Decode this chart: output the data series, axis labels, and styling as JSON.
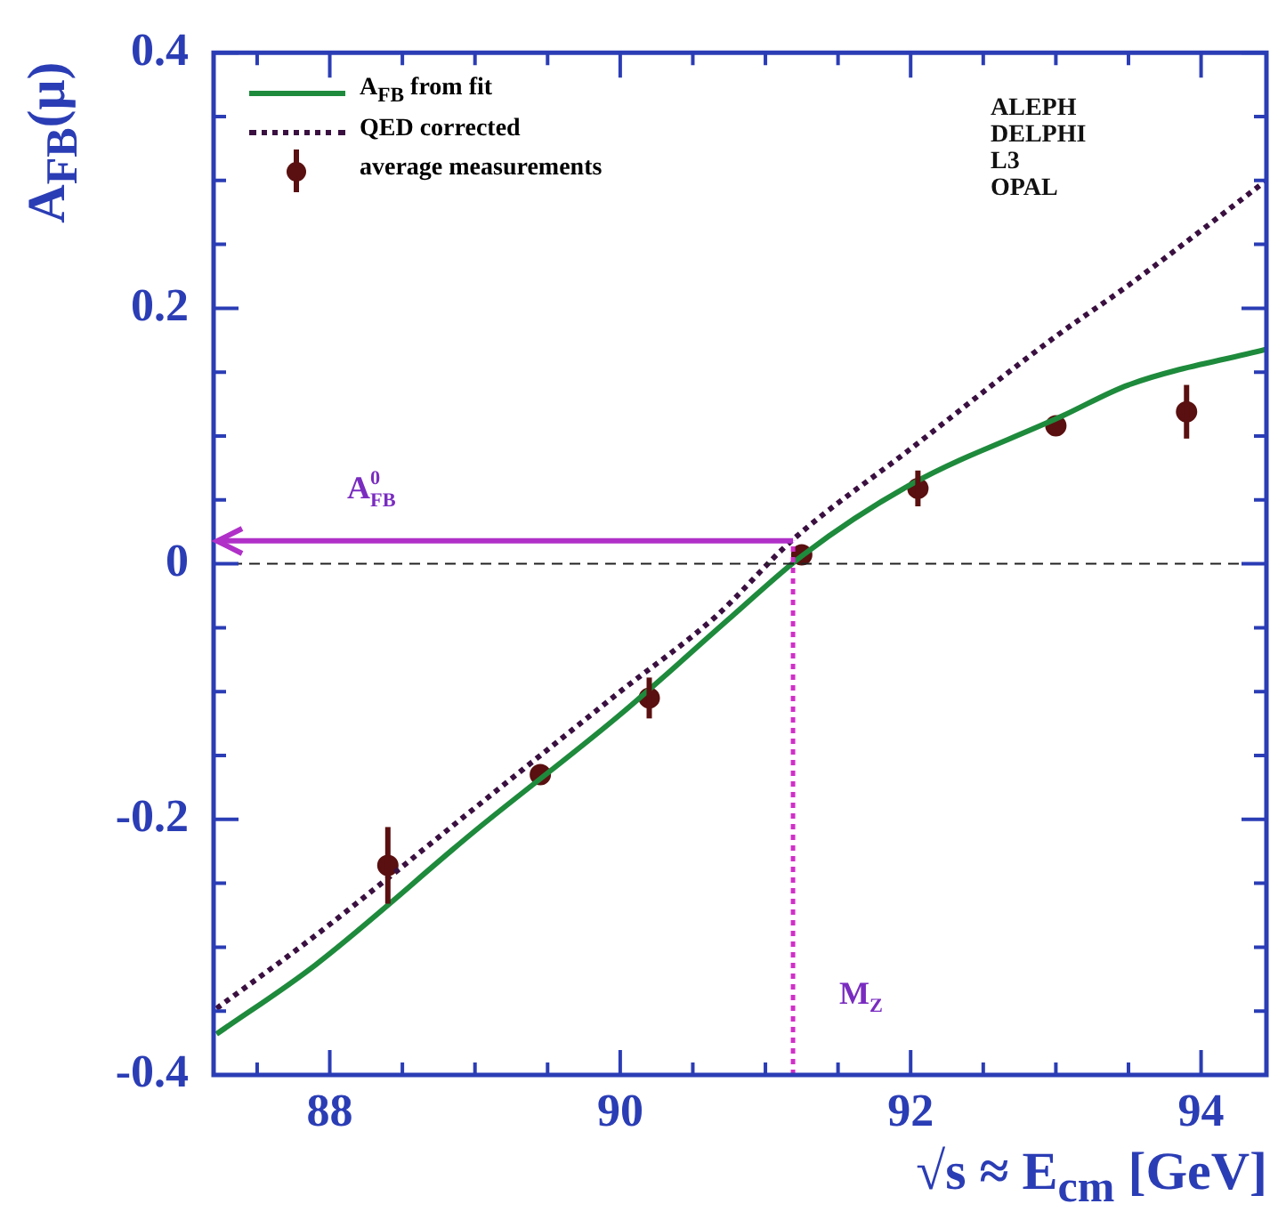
{
  "chart_data": {
    "type": "line",
    "ylabel": "A$_{FB}$(μ)",
    "xlabel": "√s ≈ E$_{cm}$ [GeV]",
    "xlim": [
      87.2,
      94.45
    ],
    "ylim": [
      -0.4,
      0.4
    ],
    "xticks": [
      {
        "value": 87.5,
        "label": null
      },
      88,
      {
        "value": 88.5,
        "label": null
      },
      {
        "value": 89,
        "label": null
      },
      {
        "value": 89.5,
        "label": null
      },
      90,
      {
        "value": 90.5,
        "label": null
      },
      {
        "value": 91,
        "label": null
      },
      {
        "value": 91.5,
        "label": null
      },
      92,
      {
        "value": 92.5,
        "label": null
      },
      {
        "value": 93,
        "label": null
      },
      {
        "value": 93.5,
        "label": null
      },
      94
    ],
    "yticks": [
      -0.4,
      {
        "value": -0.35,
        "label": null
      },
      {
        "value": -0.3,
        "label": null
      },
      {
        "value": -0.25,
        "label": null
      },
      -0.2,
      {
        "value": -0.15,
        "label": null
      },
      {
        "value": -0.1,
        "label": null
      },
      {
        "value": -0.05,
        "label": null
      },
      0,
      {
        "value": 0.05,
        "label": null
      },
      {
        "value": 0.1,
        "label": null
      },
      {
        "value": 0.15,
        "label": null
      },
      0.2,
      {
        "value": 0.25,
        "label": null
      },
      {
        "value": 0.3,
        "label": null
      },
      {
        "value": 0.35,
        "label": null
      },
      0.4
    ],
    "grid": false,
    "legend": "top left",
    "series": [
      {
        "name": "A$_{FB}$ from fit",
        "type": "line",
        "color": "#1e8a3c",
        "line_style": "solid",
        "marker": "none",
        "x": [
          87.22,
          87.9,
          89,
          90,
          90.77,
          91.26,
          92,
          93.05,
          93.5,
          94.45
        ],
        "values": [
          -0.368,
          -0.314,
          -0.209,
          -0.118,
          -0.041,
          0.007,
          0.062,
          0.116,
          0.14,
          0.168
        ]
      },
      {
        "name": "QED corrected",
        "type": "line",
        "color": "#3a1040",
        "line_style": "dotted",
        "marker": "none",
        "x": [
          87.22,
          87.9,
          89,
          90,
          90.66,
          91.18,
          92,
          93,
          93.5,
          94.45
        ],
        "values": [
          -0.348,
          -0.291,
          -0.191,
          -0.1,
          -0.041,
          0.018,
          0.09,
          0.178,
          0.218,
          0.3
        ]
      },
      {
        "name": "average measurements",
        "type": "scatter",
        "color": "#5a1010",
        "marker": "circle",
        "x": [
          88.4,
          89.45,
          90.2,
          91.25,
          92.05,
          93.0,
          93.9
        ],
        "values": [
          -0.236,
          -0.165,
          -0.105,
          0.007,
          0.059,
          0.108,
          0.119
        ],
        "errors": [
          0.03,
          null,
          0.016,
          null,
          0.014,
          null,
          0.021
        ]
      }
    ],
    "ref_lines": [
      {
        "axis": "y",
        "value": 0,
        "color": "#222222",
        "line_style": "dashed"
      },
      {
        "axis": "x",
        "value": 91.19,
        "label": "M$_{Z}$",
        "color": "#d030c8",
        "line_style": "dotted"
      },
      {
        "axis": "y",
        "value": 0.018,
        "label": "A$_{FB}$$^{0}$",
        "color": "#b030c8",
        "line_style": "solid"
      }
    ],
    "annotations": [
      "ALEPH\nDELPHI\nL3\nOPAL"
    ]
  }
}
